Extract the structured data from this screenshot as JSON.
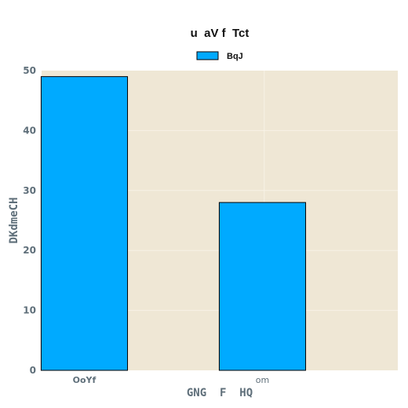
{
  "chart_data": {
    "type": "bar",
    "title": "u  aV f  Tct",
    "xlabel": "GNG  F  HQ",
    "ylabel": "DKdmeCH",
    "categories": [
      "OoYf",
      "om"
    ],
    "series": [
      {
        "name": "BqJ",
        "values": [
          49,
          28
        ]
      }
    ],
    "ylim": [
      0,
      50
    ],
    "yticks": [
      0,
      10,
      20,
      30,
      40,
      50
    ],
    "grid": true,
    "legend_position": "top-center",
    "colors": {
      "bar": "#00aaff",
      "bar_edge": "#000000",
      "plot_background": "#efe7d5",
      "grid": "#f7f2e6",
      "text": "#5f6f7a"
    }
  }
}
